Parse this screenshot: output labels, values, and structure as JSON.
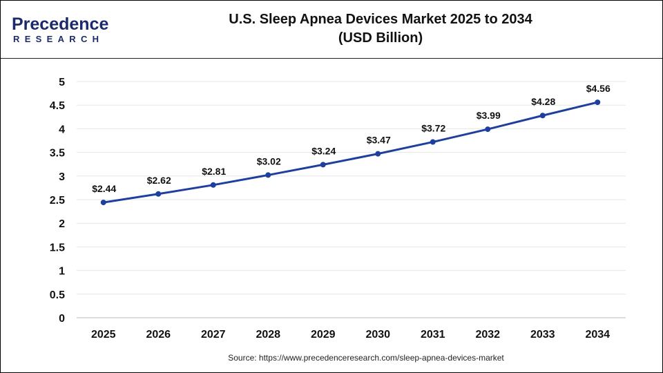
{
  "logo": {
    "line1": "Precedence",
    "line2": "RESEARCH"
  },
  "chart_data": {
    "type": "line",
    "title": "U.S. Sleep Apnea Devices Market 2025 to 2034",
    "subtitle": "(USD Billion)",
    "categories": [
      "2025",
      "2026",
      "2027",
      "2028",
      "2029",
      "2030",
      "2031",
      "2032",
      "2033",
      "2034"
    ],
    "values": [
      2.44,
      2.62,
      2.81,
      3.02,
      3.24,
      3.47,
      3.72,
      3.99,
      4.28,
      4.56
    ],
    "data_labels": [
      "$2.44",
      "$2.62",
      "$2.81",
      "$3.02",
      "$3.24",
      "$3.47",
      "$3.72",
      "$3.99",
      "$4.28",
      "$4.56"
    ],
    "yticks": [
      "0",
      "0.5",
      "1",
      "1.5",
      "2",
      "2.5",
      "3",
      "3.5",
      "4",
      "4.5",
      "5"
    ],
    "ylim": [
      0,
      5
    ],
    "xlabel": "",
    "ylabel": "",
    "grid": true,
    "color": "#1f3f9f"
  },
  "source": "Source: https://www.precedenceresearch.com/sleep-apnea-devices-market"
}
